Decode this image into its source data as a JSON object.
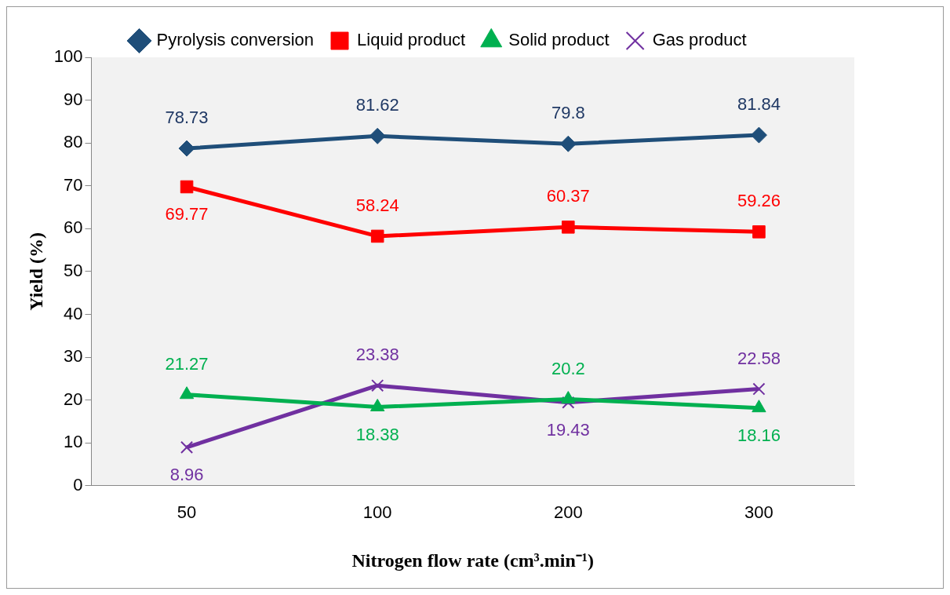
{
  "chart_data": {
    "type": "line",
    "xlabel": "Nitrogen flow rate (cm³.min⁻¹)",
    "ylabel": "Yield (%)",
    "categories": [
      "50",
      "100",
      "200",
      "300"
    ],
    "ylim": [
      0,
      100
    ],
    "yticks": [
      0,
      10,
      20,
      30,
      40,
      50,
      60,
      70,
      80,
      90,
      100
    ],
    "grid": false,
    "legend": "top",
    "data_labels": true,
    "series": [
      {
        "name": "Pyrolysis conversion",
        "color": "#1f4e79",
        "marker": "diamond",
        "values": [
          78.73,
          81.62,
          79.8,
          81.84
        ]
      },
      {
        "name": "Liquid product",
        "color": "#ff0000",
        "marker": "square",
        "values": [
          69.77,
          58.24,
          60.37,
          59.26
        ]
      },
      {
        "name": "Solid product",
        "color": "#00b050",
        "marker": "triangle",
        "values": [
          21.27,
          18.38,
          20.2,
          18.16
        ]
      },
      {
        "name": "Gas product",
        "color": "#7030a0",
        "marker": "cross",
        "values": [
          8.96,
          23.38,
          19.43,
          22.58
        ]
      }
    ]
  }
}
